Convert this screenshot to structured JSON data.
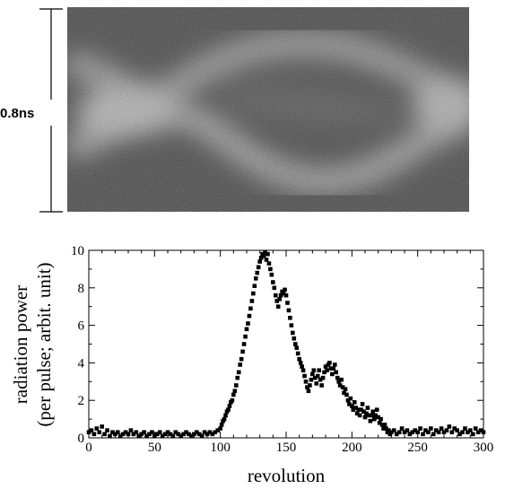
{
  "streak_image": {
    "scale_label": "0.8ns"
  },
  "chart_data": {
    "type": "scatter",
    "xlabel": "revolution",
    "ylabel_line1": "radiation power",
    "ylabel_line2": "(per pulse;  arbit. unit)",
    "xlim": [
      0,
      300
    ],
    "ylim": [
      0,
      10
    ],
    "x_ticks": [
      0,
      50,
      100,
      150,
      200,
      250,
      300
    ],
    "y_ticks": [
      0,
      2,
      4,
      6,
      8,
      10
    ],
    "x_tick_labels": [
      "0",
      "50",
      "100",
      "150",
      "200",
      "250",
      "300"
    ],
    "y_tick_labels": [
      "0",
      "2",
      "4",
      "6",
      "8",
      "10"
    ],
    "grid": false,
    "marker": "square",
    "color": "#000000",
    "points": [
      [
        0,
        0.3
      ],
      [
        2,
        0.4
      ],
      [
        4,
        0.2
      ],
      [
        6,
        0.5
      ],
      [
        8,
        0.3
      ],
      [
        10,
        0.6
      ],
      [
        12,
        0.2
      ],
      [
        14,
        0.4
      ],
      [
        16,
        0.1
      ],
      [
        18,
        0.3
      ],
      [
        20,
        0.2
      ],
      [
        22,
        0.3
      ],
      [
        24,
        0.1
      ],
      [
        26,
        0.2
      ],
      [
        28,
        0.3
      ],
      [
        30,
        0.2
      ],
      [
        32,
        0.4
      ],
      [
        34,
        0.2
      ],
      [
        36,
        0.3
      ],
      [
        38,
        0.1
      ],
      [
        40,
        0.2
      ],
      [
        42,
        0.3
      ],
      [
        44,
        0.1
      ],
      [
        46,
        0.2
      ],
      [
        48,
        0.3
      ],
      [
        50,
        0.1
      ],
      [
        52,
        0.2
      ],
      [
        54,
        0.3
      ],
      [
        56,
        0.1
      ],
      [
        58,
        0.2
      ],
      [
        60,
        0.3
      ],
      [
        62,
        0.2
      ],
      [
        64,
        0.1
      ],
      [
        66,
        0.3
      ],
      [
        68,
        0.2
      ],
      [
        70,
        0.1
      ],
      [
        72,
        0.2
      ],
      [
        74,
        0.3
      ],
      [
        76,
        0.2
      ],
      [
        78,
        0.1
      ],
      [
        80,
        0.2
      ],
      [
        82,
        0.3
      ],
      [
        84,
        0.2
      ],
      [
        86,
        0.1
      ],
      [
        88,
        0.3
      ],
      [
        90,
        0.2
      ],
      [
        92,
        0.3
      ],
      [
        94,
        0.2
      ],
      [
        96,
        0.3
      ],
      [
        98,
        0.4
      ],
      [
        100,
        0.5
      ],
      [
        101,
        0.7
      ],
      [
        102,
        0.9
      ],
      [
        103,
        1.0
      ],
      [
        104,
        1.2
      ],
      [
        105,
        1.4
      ],
      [
        106,
        1.5
      ],
      [
        107,
        1.7
      ],
      [
        108,
        1.9
      ],
      [
        109,
        2.0
      ],
      [
        110,
        2.3
      ],
      [
        111,
        2.5
      ],
      [
        112,
        2.8
      ],
      [
        113,
        3.2
      ],
      [
        114,
        3.5
      ],
      [
        115,
        3.9
      ],
      [
        116,
        4.2
      ],
      [
        117,
        4.6
      ],
      [
        118,
        5.0
      ],
      [
        119,
        5.4
      ],
      [
        120,
        5.8
      ],
      [
        121,
        6.1
      ],
      [
        122,
        6.5
      ],
      [
        123,
        6.9
      ],
      [
        124,
        7.3
      ],
      [
        125,
        7.7
      ],
      [
        126,
        8.1
      ],
      [
        127,
        8.5
      ],
      [
        128,
        8.8
      ],
      [
        129,
        9.1
      ],
      [
        130,
        9.4
      ],
      [
        131,
        9.6
      ],
      [
        132,
        9.8
      ],
      [
        133,
        9.7
      ],
      [
        134,
        9.9
      ],
      [
        135,
        9.5
      ],
      [
        136,
        9.8
      ],
      [
        137,
        9.3
      ],
      [
        138,
        9.0
      ],
      [
        139,
        8.7
      ],
      [
        140,
        8.3
      ],
      [
        141,
        8.0
      ],
      [
        142,
        7.6
      ],
      [
        143,
        7.3
      ],
      [
        144,
        7.0
      ],
      [
        145,
        7.4
      ],
      [
        146,
        7.6
      ],
      [
        147,
        7.8
      ],
      [
        148,
        7.7
      ],
      [
        149,
        7.9
      ],
      [
        150,
        7.6
      ],
      [
        151,
        7.2
      ],
      [
        152,
        6.8
      ],
      [
        153,
        6.4
      ],
      [
        154,
        6.0
      ],
      [
        155,
        5.6
      ],
      [
        156,
        5.3
      ],
      [
        157,
        5.0
      ],
      [
        158,
        4.8
      ],
      [
        159,
        4.5
      ],
      [
        160,
        4.2
      ],
      [
        161,
        4.0
      ],
      [
        162,
        3.8
      ],
      [
        163,
        3.6
      ],
      [
        164,
        3.3
      ],
      [
        165,
        3.0
      ],
      [
        166,
        2.7
      ],
      [
        167,
        2.5
      ],
      [
        168,
        2.8
      ],
      [
        169,
        3.1
      ],
      [
        170,
        3.4
      ],
      [
        171,
        3.6
      ],
      [
        172,
        3.2
      ],
      [
        173,
        2.9
      ],
      [
        174,
        3.3
      ],
      [
        175,
        3.6
      ],
      [
        176,
        3.1
      ],
      [
        177,
        2.8
      ],
      [
        178,
        3.2
      ],
      [
        179,
        3.5
      ],
      [
        180,
        3.8
      ],
      [
        181,
        3.6
      ],
      [
        182,
        3.9
      ],
      [
        183,
        4.0
      ],
      [
        184,
        3.7
      ],
      [
        185,
        3.4
      ],
      [
        186,
        3.7
      ],
      [
        187,
        3.9
      ],
      [
        188,
        3.5
      ],
      [
        189,
        3.2
      ],
      [
        190,
        3.0
      ],
      [
        191,
        2.8
      ],
      [
        192,
        3.1
      ],
      [
        193,
        2.7
      ],
      [
        194,
        2.4
      ],
      [
        195,
        2.6
      ],
      [
        196,
        2.3
      ],
      [
        197,
        2.0
      ],
      [
        198,
        1.8
      ],
      [
        199,
        2.1
      ],
      [
        200,
        1.7
      ],
      [
        201,
        1.5
      ],
      [
        202,
        1.9
      ],
      [
        203,
        1.6
      ],
      [
        204,
        1.3
      ],
      [
        205,
        1.5
      ],
      [
        206,
        1.2
      ],
      [
        207,
        1.5
      ],
      [
        208,
        1.8
      ],
      [
        209,
        1.4
      ],
      [
        210,
        1.1
      ],
      [
        211,
        1.3
      ],
      [
        212,
        1.6
      ],
      [
        213,
        1.2
      ],
      [
        214,
        0.9
      ],
      [
        215,
        1.2
      ],
      [
        216,
        1.4
      ],
      [
        217,
        1.0
      ],
      [
        218,
        1.2
      ],
      [
        219,
        1.5
      ],
      [
        220,
        1.1
      ],
      [
        221,
        0.8
      ],
      [
        222,
        1.0
      ],
      [
        223,
        0.7
      ],
      [
        224,
        0.5
      ],
      [
        225,
        0.7
      ],
      [
        226,
        0.5
      ],
      [
        227,
        0.3
      ],
      [
        228,
        0.4
      ],
      [
        229,
        0.2
      ],
      [
        230,
        0.3
      ],
      [
        232,
        0.4
      ],
      [
        234,
        0.2
      ],
      [
        236,
        0.3
      ],
      [
        238,
        0.5
      ],
      [
        240,
        0.3
      ],
      [
        242,
        0.4
      ],
      [
        244,
        0.2
      ],
      [
        246,
        0.3
      ],
      [
        248,
        0.4
      ],
      [
        250,
        0.3
      ],
      [
        252,
        0.5
      ],
      [
        254,
        0.2
      ],
      [
        256,
        0.4
      ],
      [
        258,
        0.3
      ],
      [
        260,
        0.5
      ],
      [
        262,
        0.2
      ],
      [
        264,
        0.4
      ],
      [
        266,
        0.3
      ],
      [
        268,
        0.5
      ],
      [
        270,
        0.3
      ],
      [
        272,
        0.4
      ],
      [
        274,
        0.6
      ],
      [
        276,
        0.3
      ],
      [
        278,
        0.5
      ],
      [
        280,
        0.4
      ],
      [
        282,
        0.2
      ],
      [
        284,
        0.3
      ],
      [
        286,
        0.5
      ],
      [
        288,
        0.3
      ],
      [
        290,
        0.4
      ],
      [
        292,
        0.2
      ],
      [
        294,
        0.5
      ],
      [
        296,
        0.3
      ],
      [
        298,
        0.4
      ],
      [
        300,
        0.3
      ]
    ]
  }
}
